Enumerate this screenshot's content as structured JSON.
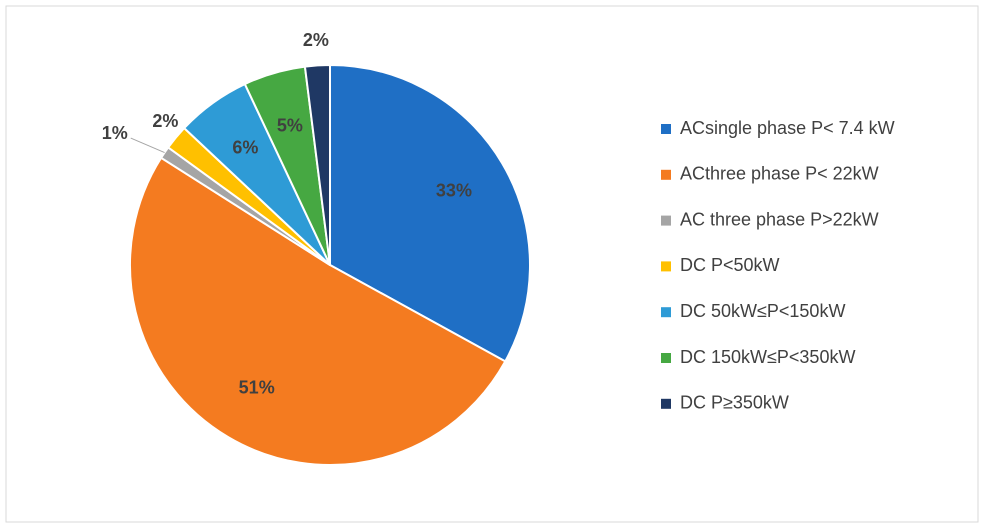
{
  "chart_data": {
    "type": "pie",
    "categories": [
      "ACsingle phase  P< 7.4 kW",
      "ACthree phase  P< 22kW",
      "AC three phase  P>22kW",
      "DC  P<50kW",
      "DC  50kW≤P<150kW",
      "DC  150kW≤P<350kW",
      "DC P≥350kW"
    ],
    "values": [
      33,
      51,
      1,
      2,
      6,
      5,
      2
    ],
    "value_labels": [
      "33%",
      "51%",
      "1%",
      "2%",
      "6%",
      "5%",
      "2%"
    ],
    "colors": [
      "#1f6fc5",
      "#f47b20",
      "#a5a5a5",
      "#ffc000",
      "#2e9bd6",
      "#46a842",
      "#1f3864"
    ],
    "legend": "right"
  }
}
